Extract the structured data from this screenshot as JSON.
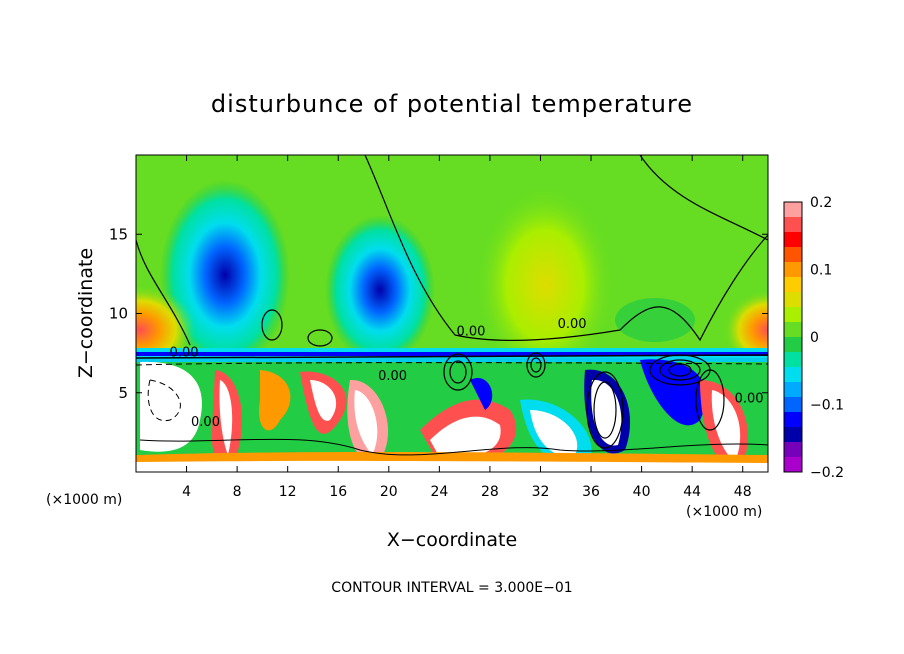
{
  "chart_data": {
    "type": "heatmap",
    "title": "disturbunce of potential temperature",
    "xlabel": "X−coordinate",
    "ylabel": "Z−coordinate",
    "x_unit_left": "(×1000 m)",
    "x_unit_right": "(×1000 m)",
    "xlim": [
      0,
      50
    ],
    "ylim": [
      0,
      20
    ],
    "x_ticks": [
      4,
      8,
      12,
      16,
      20,
      24,
      28,
      32,
      36,
      40,
      44,
      48
    ],
    "y_ticks": [
      5,
      10,
      15
    ],
    "contour_interval_text": "CONTOUR INTERVAL = 3.000E−01",
    "contour_labels": [
      {
        "text": "0.00",
        "x": 3.8,
        "y": 7.3
      },
      {
        "text": "0.00",
        "x": 26.5,
        "y": 8.6
      },
      {
        "text": "0.00",
        "x": 34.5,
        "y": 9.1
      },
      {
        "text": "0.00",
        "x": 20.3,
        "y": 5.8
      },
      {
        "text": "0.00",
        "x": 5.5,
        "y": 2.9
      },
      {
        "text": "0.00",
        "x": 48.5,
        "y": 4.4
      }
    ],
    "colorbar": {
      "min": -0.2,
      "max": 0.2,
      "ticks": [
        "0.2",
        "0.1",
        "0",
        "−0.1",
        "−0.2"
      ],
      "colors": [
        "#ffa0a0",
        "#ff5050",
        "#ff0000",
        "#ff5500",
        "#ff9900",
        "#ffcc00",
        "#dddd00",
        "#aaee00",
        "#66dd22",
        "#22cc44",
        "#00e0a0",
        "#00ddee",
        "#00aaff",
        "#0066ff",
        "#0000ff",
        "#0000aa",
        "#7700bb",
        "#aa00cc"
      ]
    }
  }
}
